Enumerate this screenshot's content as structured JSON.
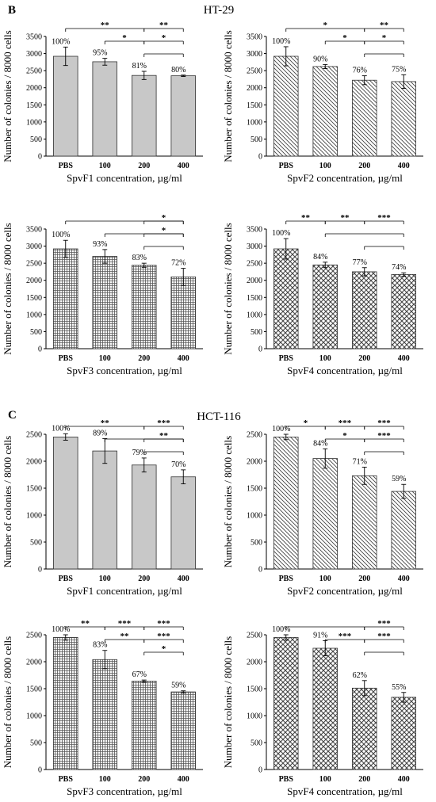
{
  "figure": {
    "sections": [
      {
        "letter": "B",
        "title": "HT-29"
      },
      {
        "letter": "C",
        "title": "HCT-116"
      }
    ]
  },
  "chart_data": [
    {
      "type": "bar",
      "section": 0,
      "pattern": "solid",
      "categories": [
        "PBS",
        "100",
        "200",
        "400"
      ],
      "values": [
        2920,
        2760,
        2360,
        2350
      ],
      "errors": [
        270,
        100,
        120,
        20
      ],
      "labels": [
        "100%",
        "95%",
        "81%",
        "80%"
      ],
      "ylim": [
        0,
        3500
      ],
      "yticks": [
        0,
        500,
        1000,
        1500,
        2000,
        2500,
        3000,
        3500
      ],
      "xlabel": "SpvF1 concentration, µg/ml",
      "ylabel": "Number of colonies / 8000 cells",
      "comparisons": [
        {
          "from": 0,
          "to": 2,
          "label": "**",
          "level": 3
        },
        {
          "from": 2,
          "to": 3,
          "label": "**",
          "level": 3
        },
        {
          "from": 1,
          "to": 2,
          "label": "*",
          "level": 2
        },
        {
          "from": 2,
          "to": 3,
          "label": "*",
          "level": 2
        },
        {
          "from": 2,
          "to": 3,
          "label": "",
          "level": 1
        }
      ]
    },
    {
      "type": "bar",
      "section": 0,
      "pattern": "diag",
      "categories": [
        "PBS",
        "100",
        "200",
        "400"
      ],
      "values": [
        2920,
        2620,
        2220,
        2180
      ],
      "errors": [
        280,
        60,
        130,
        200
      ],
      "labels": [
        "100%",
        "90%",
        "76%",
        "75%"
      ],
      "ylim": [
        0,
        3500
      ],
      "yticks": [
        0,
        500,
        1000,
        1500,
        2000,
        2500,
        3000,
        3500
      ],
      "xlabel": "SpvF2 concentration, µg/ml",
      "ylabel": "Number of colonies / 8000 cells",
      "comparisons": [
        {
          "from": 0,
          "to": 2,
          "label": "*",
          "level": 3
        },
        {
          "from": 2,
          "to": 3,
          "label": "**",
          "level": 3
        },
        {
          "from": 1,
          "to": 2,
          "label": "*",
          "level": 2
        },
        {
          "from": 2,
          "to": 3,
          "label": "*",
          "level": 2
        },
        {
          "from": 2,
          "to": 3,
          "label": "",
          "level": 1
        }
      ]
    },
    {
      "type": "bar",
      "section": 0,
      "pattern": "grid",
      "categories": [
        "PBS",
        "100",
        "200",
        "400"
      ],
      "values": [
        2920,
        2700,
        2440,
        2100
      ],
      "errors": [
        250,
        200,
        60,
        250
      ],
      "labels": [
        "100%",
        "93%",
        "83%",
        "72%"
      ],
      "ylim": [
        0,
        3500
      ],
      "yticks": [
        0,
        500,
        1000,
        1500,
        2000,
        2500,
        3000,
        3500
      ],
      "xlabel": "SpvF3 concentration, µg/ml",
      "ylabel": "Number of colonies / 8000 cells",
      "comparisons": [
        {
          "from": 0,
          "to": 3,
          "label": "",
          "level": 3
        },
        {
          "from": 2,
          "to": 3,
          "label": "*",
          "level": 3
        },
        {
          "from": 1,
          "to": 3,
          "label": "",
          "level": 2
        },
        {
          "from": 2,
          "to": 3,
          "label": "*",
          "level": 2
        },
        {
          "from": 2,
          "to": 3,
          "label": "",
          "level": 1
        }
      ]
    },
    {
      "type": "bar",
      "section": 0,
      "pattern": "check",
      "categories": [
        "PBS",
        "100",
        "200",
        "400"
      ],
      "values": [
        2920,
        2450,
        2250,
        2170
      ],
      "errors": [
        300,
        80,
        120,
        50
      ],
      "labels": [
        "100%",
        "84%",
        "77%",
        "74%"
      ],
      "ylim": [
        0,
        3500
      ],
      "yticks": [
        0,
        500,
        1000,
        1500,
        2000,
        2500,
        3000,
        3500
      ],
      "xlabel": "SpvF4 concentration, µg/ml",
      "ylabel": "Number of colonies / 8000 cells",
      "comparisons": [
        {
          "from": 0,
          "to": 1,
          "label": "**",
          "level": 3
        },
        {
          "from": 1,
          "to": 2,
          "label": "**",
          "level": 3
        },
        {
          "from": 2,
          "to": 3,
          "label": "***",
          "level": 3
        },
        {
          "from": 1,
          "to": 3,
          "label": "",
          "level": 2
        },
        {
          "from": 2,
          "to": 3,
          "label": "",
          "level": 1
        }
      ]
    },
    {
      "type": "bar",
      "section": 1,
      "pattern": "solid",
      "categories": [
        "PBS",
        "100",
        "200",
        "400"
      ],
      "values": [
        2450,
        2190,
        1930,
        1710
      ],
      "errors": [
        60,
        230,
        130,
        130
      ],
      "labels": [
        "100%",
        "89%",
        "79%",
        "70%"
      ],
      "ylim": [
        0,
        3000
      ],
      "yticks": [
        0,
        500,
        1000,
        1500,
        2000,
        2500
      ],
      "xlabel": "SpvF1 concentration, µg/ml",
      "ylabel": "Number of colonies / 8000 cells",
      "comparisons": [
        {
          "from": 0,
          "to": 2,
          "label": "**",
          "level": 3
        },
        {
          "from": 2,
          "to": 3,
          "label": "***",
          "level": 3
        },
        {
          "from": 1,
          "to": 3,
          "label": "",
          "level": 2
        },
        {
          "from": 2,
          "to": 3,
          "label": "**",
          "level": 2
        },
        {
          "from": 2,
          "to": 3,
          "label": "",
          "level": 1
        }
      ]
    },
    {
      "type": "bar",
      "section": 1,
      "pattern": "diag",
      "categories": [
        "PBS",
        "100",
        "200",
        "400"
      ],
      "values": [
        2450,
        2050,
        1730,
        1440
      ],
      "errors": [
        50,
        180,
        160,
        130
      ],
      "labels": [
        "100%",
        "84%",
        "71%",
        "59%"
      ],
      "ylim": [
        0,
        3000
      ],
      "yticks": [
        0,
        500,
        1000,
        1500,
        2000,
        2500
      ],
      "xlabel": "SpvF2 concentration, µg/ml",
      "ylabel": "Number of colonies / 8000 cells",
      "comparisons": [
        {
          "from": 0,
          "to": 1,
          "label": "*",
          "level": 3
        },
        {
          "from": 1,
          "to": 2,
          "label": "***",
          "level": 3
        },
        {
          "from": 2,
          "to": 3,
          "label": "***",
          "level": 3
        },
        {
          "from": 1,
          "to": 2,
          "label": "*",
          "level": 2
        },
        {
          "from": 2,
          "to": 3,
          "label": "***",
          "level": 2
        },
        {
          "from": 2,
          "to": 3,
          "label": "",
          "level": 1
        }
      ]
    },
    {
      "type": "bar",
      "section": 1,
      "pattern": "grid",
      "categories": [
        "PBS",
        "100",
        "200",
        "400"
      ],
      "values": [
        2450,
        2040,
        1640,
        1440
      ],
      "errors": [
        50,
        170,
        20,
        20
      ],
      "labels": [
        "100%",
        "83%",
        "67%",
        "59%"
      ],
      "ylim": [
        0,
        3000
      ],
      "yticks": [
        0,
        500,
        1000,
        1500,
        2000,
        2500
      ],
      "xlabel": "SpvF3 concentration, µg/ml",
      "ylabel": "Number of colonies / 8000 cells",
      "comparisons": [
        {
          "from": 0,
          "to": 1,
          "label": "**",
          "level": 3
        },
        {
          "from": 1,
          "to": 2,
          "label": "***",
          "level": 3
        },
        {
          "from": 2,
          "to": 3,
          "label": "***",
          "level": 3
        },
        {
          "from": 1,
          "to": 2,
          "label": "**",
          "level": 2
        },
        {
          "from": 2,
          "to": 3,
          "label": "***",
          "level": 2
        },
        {
          "from": 2,
          "to": 3,
          "label": "*",
          "level": 1
        }
      ]
    },
    {
      "type": "bar",
      "section": 1,
      "pattern": "check",
      "categories": [
        "PBS",
        "100",
        "200",
        "400"
      ],
      "values": [
        2450,
        2250,
        1510,
        1340
      ],
      "errors": [
        50,
        140,
        140,
        90
      ],
      "labels": [
        "100%",
        "91%",
        "62%",
        "55%"
      ],
      "ylim": [
        0,
        3000
      ],
      "yticks": [
        0,
        500,
        1000,
        1500,
        2000,
        2500
      ],
      "xlabel": "SpvF4 concentration, µg/ml",
      "ylabel": "Number of colonies / 8000 cells",
      "comparisons": [
        {
          "from": 0,
          "to": 2,
          "label": "",
          "level": 4
        },
        {
          "from": 2,
          "to": 3,
          "label": "***",
          "level": 4
        },
        {
          "from": 1,
          "to": 2,
          "label": "***",
          "level": 3
        },
        {
          "from": 2,
          "to": 3,
          "label": "***",
          "level": 3
        },
        {
          "from": 2,
          "to": 3,
          "label": "",
          "level": 2
        }
      ]
    }
  ]
}
